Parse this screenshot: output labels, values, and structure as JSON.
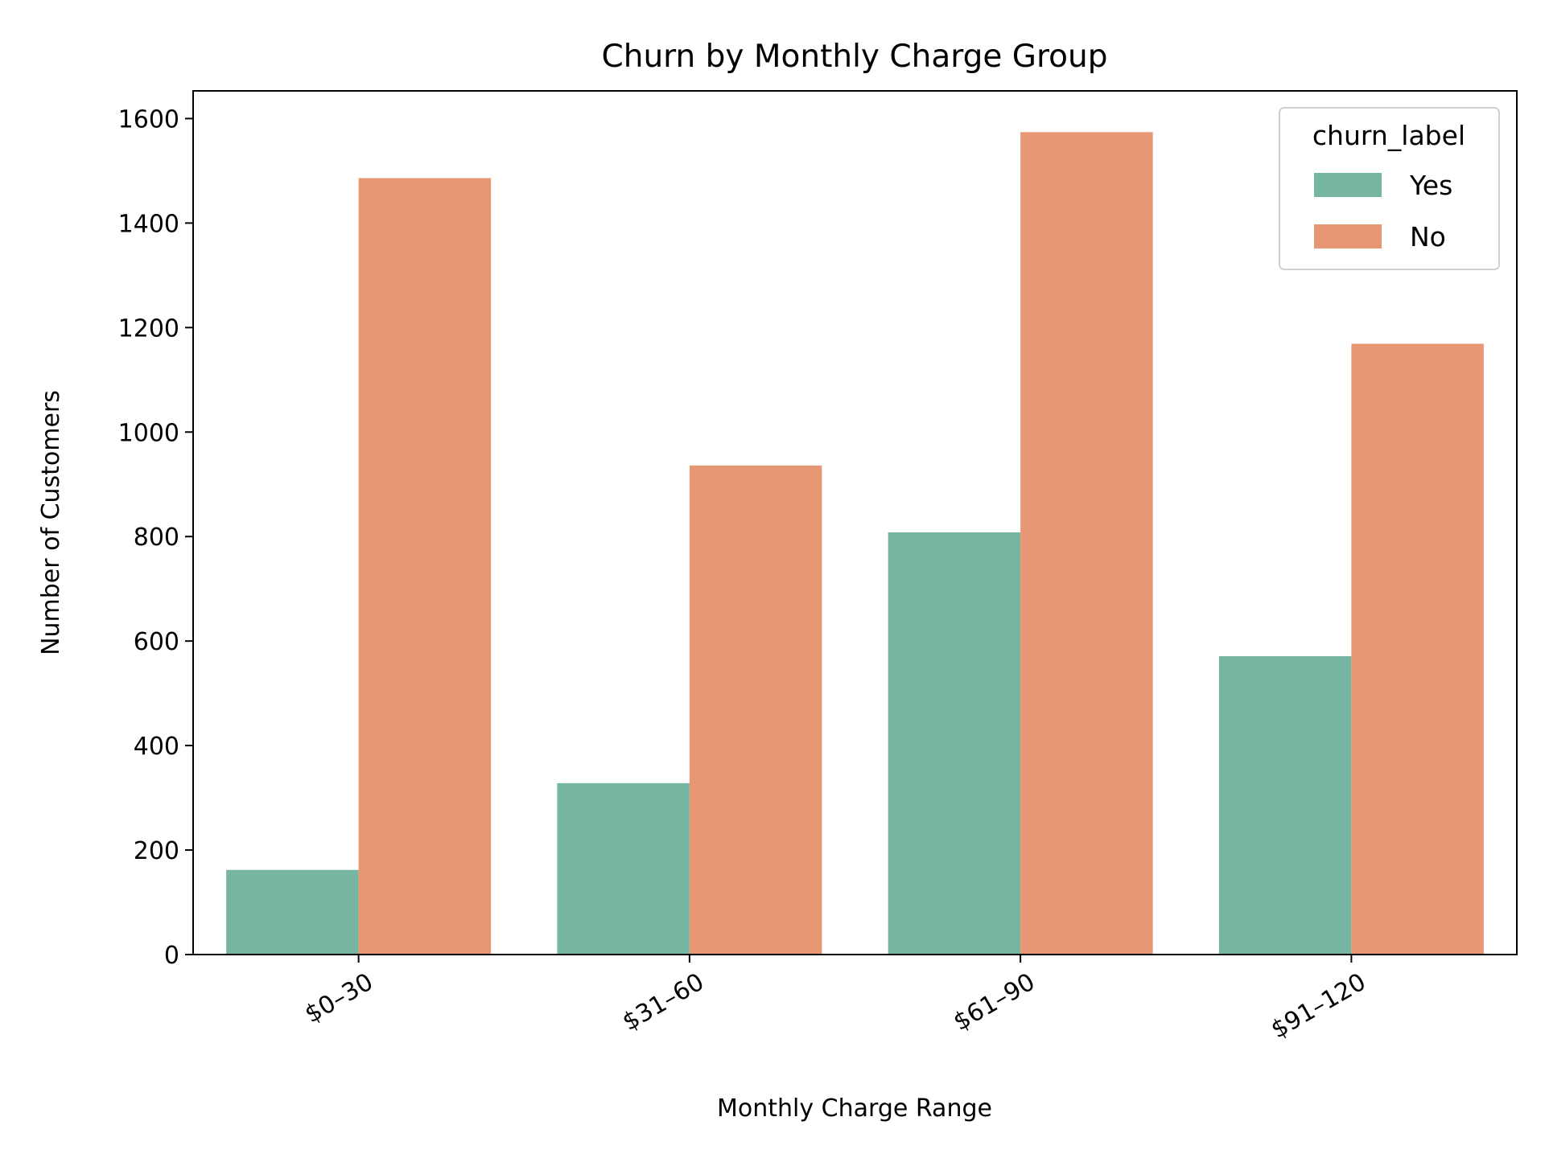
{
  "chart_data": {
    "type": "bar",
    "title": "Churn by Monthly Charge Group",
    "xlabel": "Monthly Charge Range",
    "ylabel": "Number of Customers",
    "categories": [
      "$0–30",
      "$31–60",
      "$61–90",
      "$91–120"
    ],
    "series": [
      {
        "name": "Yes",
        "values": [
          162,
          328,
          808,
          571
        ],
        "color": "#76b5a2"
      },
      {
        "name": "No",
        "values": [
          1486,
          936,
          1574,
          1169
        ],
        "color": "#e89775"
      }
    ],
    "legend": {
      "title": "churn_label",
      "position": "top-right"
    },
    "ylim": [
      0,
      1653
    ],
    "yticks": [
      0,
      200,
      400,
      600,
      800,
      1000,
      1200,
      1400,
      1600
    ],
    "grid": false
  }
}
